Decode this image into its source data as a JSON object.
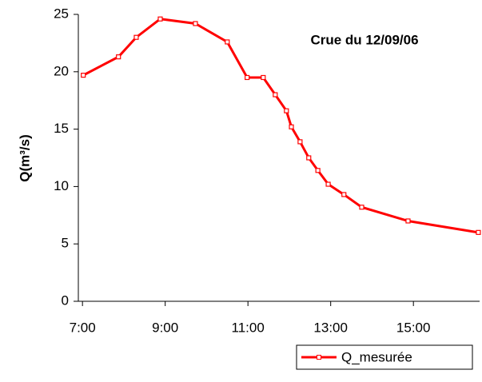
{
  "chart_data": {
    "type": "line",
    "annotation": "Crue du 12/09/06",
    "y_label": "Q(m³/s)",
    "x": [
      7.02,
      7.87,
      8.3,
      8.88,
      9.73,
      10.5,
      10.98,
      11.37,
      11.66,
      11.93,
      12.05,
      12.26,
      12.47,
      12.69,
      12.94,
      13.32,
      13.75,
      14.87,
      16.57
    ],
    "series": [
      {
        "name": "Q_mesurée",
        "color": "#ff0000",
        "values": [
          19.7,
          21.3,
          23.0,
          24.6,
          24.2,
          22.6,
          19.5,
          19.5,
          18.0,
          16.6,
          15.2,
          13.9,
          12.5,
          11.4,
          10.2,
          9.3,
          8.2,
          7.0,
          6.0
        ]
      }
    ],
    "xlim": [
      6.9,
      16.6
    ],
    "xticks": [
      {
        "value": 7,
        "label": "7:00"
      },
      {
        "value": 9,
        "label": "9:00"
      },
      {
        "value": 11,
        "label": "11:00"
      },
      {
        "value": 13,
        "label": "13:00"
      },
      {
        "value": 15,
        "label": "15:00"
      }
    ],
    "ylim": [
      0,
      25
    ],
    "yticks": [
      0,
      5,
      10,
      15,
      20,
      25
    ],
    "grid": false,
    "legend": "bottom-right"
  }
}
